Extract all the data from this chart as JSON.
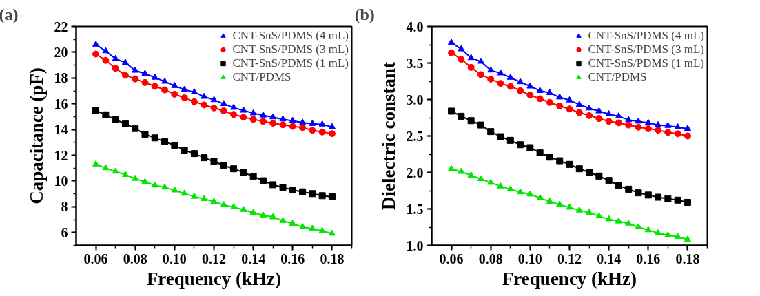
{
  "chart_data": [
    {
      "type": "line",
      "annotations": [
        "(a)"
      ],
      "xlabel": "Frequency (kHz)",
      "ylabel": "Capacitance (pF)",
      "x": [
        0.06,
        0.065,
        0.07,
        0.075,
        0.08,
        0.085,
        0.09,
        0.095,
        0.1,
        0.105,
        0.11,
        0.115,
        0.12,
        0.125,
        0.13,
        0.135,
        0.14,
        0.145,
        0.15,
        0.155,
        0.16,
        0.165,
        0.17,
        0.175,
        0.18
      ],
      "xlim": [
        0.05,
        0.19
      ],
      "xticks": [
        {
          "value": 0.06,
          "label": "0.06"
        },
        {
          "value": 0.08,
          "label": "0.08"
        },
        {
          "value": 0.1,
          "label": "0.10"
        },
        {
          "value": 0.12,
          "label": "0.12"
        },
        {
          "value": 0.14,
          "label": "0.14"
        },
        {
          "value": 0.16,
          "label": "0.16"
        },
        {
          "value": 0.18,
          "label": "0.18"
        }
      ],
      "ylim": [
        5,
        22
      ],
      "yticks": [
        6,
        8,
        10,
        12,
        14,
        16,
        18,
        20,
        22
      ],
      "legend": "top right",
      "grid": false,
      "series": [
        {
          "name": "CNT-SnS/PDMS (4 mL)",
          "color": "#0000ff",
          "marker": "triangle",
          "values": [
            20.6,
            20.09,
            19.49,
            19.2,
            18.58,
            18.34,
            18.04,
            17.73,
            17.39,
            17.1,
            16.9,
            16.55,
            16.3,
            15.99,
            15.7,
            15.48,
            15.27,
            15.1,
            14.96,
            14.8,
            14.68,
            14.54,
            14.45,
            14.4,
            14.2
          ]
        },
        {
          "name": "CNT-SnS/PDMS (3 mL)",
          "color": "#ff0000",
          "marker": "circle",
          "values": [
            19.86,
            19.37,
            18.75,
            18.21,
            17.93,
            17.65,
            17.36,
            17.08,
            16.74,
            16.47,
            16.16,
            15.91,
            15.68,
            15.45,
            15.17,
            14.96,
            14.79,
            14.63,
            14.49,
            14.37,
            14.25,
            14.15,
            13.94,
            13.81,
            13.68
          ]
        },
        {
          "name": "CNT-SnS/PDMS (1 mL)",
          "color": "#000000",
          "marker": "square",
          "values": [
            15.48,
            15.14,
            14.76,
            14.45,
            14.08,
            13.63,
            13.35,
            13.05,
            12.78,
            12.4,
            12.13,
            11.81,
            11.52,
            11.21,
            10.95,
            10.66,
            10.36,
            10.02,
            9.71,
            9.51,
            9.3,
            9.16,
            9.02,
            8.86,
            8.77
          ]
        },
        {
          "name": "CNT/PDMS",
          "color": "#00e600",
          "marker": "triangle",
          "values": [
            11.3,
            11.01,
            10.74,
            10.49,
            10.18,
            9.93,
            9.67,
            9.51,
            9.28,
            9.03,
            8.79,
            8.61,
            8.4,
            8.14,
            7.97,
            7.77,
            7.54,
            7.34,
            7.2,
            6.91,
            6.69,
            6.43,
            6.3,
            6.13,
            5.92
          ]
        }
      ]
    },
    {
      "type": "line",
      "annotations": [
        "(b)"
      ],
      "xlabel": "Frequency (kHz)",
      "ylabel": "Dielectric constant",
      "x": [
        0.06,
        0.065,
        0.07,
        0.075,
        0.08,
        0.085,
        0.09,
        0.095,
        0.1,
        0.105,
        0.11,
        0.115,
        0.12,
        0.125,
        0.13,
        0.135,
        0.14,
        0.145,
        0.15,
        0.155,
        0.16,
        0.165,
        0.17,
        0.175,
        0.18
      ],
      "xlim": [
        0.05,
        0.19
      ],
      "xticks": [
        {
          "value": 0.06,
          "label": "0.06"
        },
        {
          "value": 0.08,
          "label": "0.08"
        },
        {
          "value": 0.1,
          "label": "0.10"
        },
        {
          "value": 0.12,
          "label": "0.12"
        },
        {
          "value": 0.14,
          "label": "0.14"
        },
        {
          "value": 0.16,
          "label": "0.16"
        },
        {
          "value": 0.18,
          "label": "0.18"
        }
      ],
      "ylim": [
        1.0,
        4.0
      ],
      "yticks": [
        {
          "value": 1,
          "label": "1.0"
        },
        {
          "value": 1.5,
          "label": "1.5"
        },
        {
          "value": 2,
          "label": "2.0"
        },
        {
          "value": 2.5,
          "label": "2.5"
        },
        {
          "value": 3,
          "label": "3.0"
        },
        {
          "value": 3.5,
          "label": "3.5"
        },
        {
          "value": 4,
          "label": "4.0"
        }
      ],
      "legend": "top right",
      "grid": false,
      "series": [
        {
          "name": "CNT-SnS/PDMS (4 mL)",
          "color": "#0000ff",
          "marker": "triangle",
          "values": [
            3.78,
            3.69,
            3.57,
            3.52,
            3.4,
            3.36,
            3.3,
            3.24,
            3.18,
            3.12,
            3.09,
            3.03,
            2.99,
            2.93,
            2.88,
            2.84,
            2.8,
            2.77,
            2.72,
            2.7,
            2.68,
            2.65,
            2.64,
            2.62,
            2.6
          ]
        },
        {
          "name": "CNT-SnS/PDMS (3 mL)",
          "color": "#ff0000",
          "marker": "circle",
          "values": [
            3.64,
            3.55,
            3.44,
            3.34,
            3.28,
            3.22,
            3.18,
            3.12,
            3.06,
            3.01,
            2.96,
            2.91,
            2.87,
            2.82,
            2.78,
            2.74,
            2.7,
            2.68,
            2.65,
            2.62,
            2.6,
            2.58,
            2.55,
            2.53,
            2.5
          ]
        },
        {
          "name": "CNT-SnS/PDMS (1 mL)",
          "color": "#000000",
          "marker": "square",
          "values": [
            2.84,
            2.77,
            2.71,
            2.65,
            2.56,
            2.49,
            2.44,
            2.38,
            2.34,
            2.27,
            2.21,
            2.16,
            2.11,
            2.05,
            2.0,
            1.95,
            1.89,
            1.82,
            1.77,
            1.72,
            1.69,
            1.66,
            1.64,
            1.62,
            1.59
          ]
        },
        {
          "name": "CNT/PDMS",
          "color": "#00e600",
          "marker": "triangle",
          "values": [
            2.05,
            2.01,
            1.96,
            1.91,
            1.86,
            1.81,
            1.77,
            1.73,
            1.7,
            1.65,
            1.6,
            1.56,
            1.52,
            1.48,
            1.45,
            1.4,
            1.36,
            1.33,
            1.3,
            1.25,
            1.21,
            1.17,
            1.14,
            1.12,
            1.08
          ]
        }
      ]
    }
  ]
}
